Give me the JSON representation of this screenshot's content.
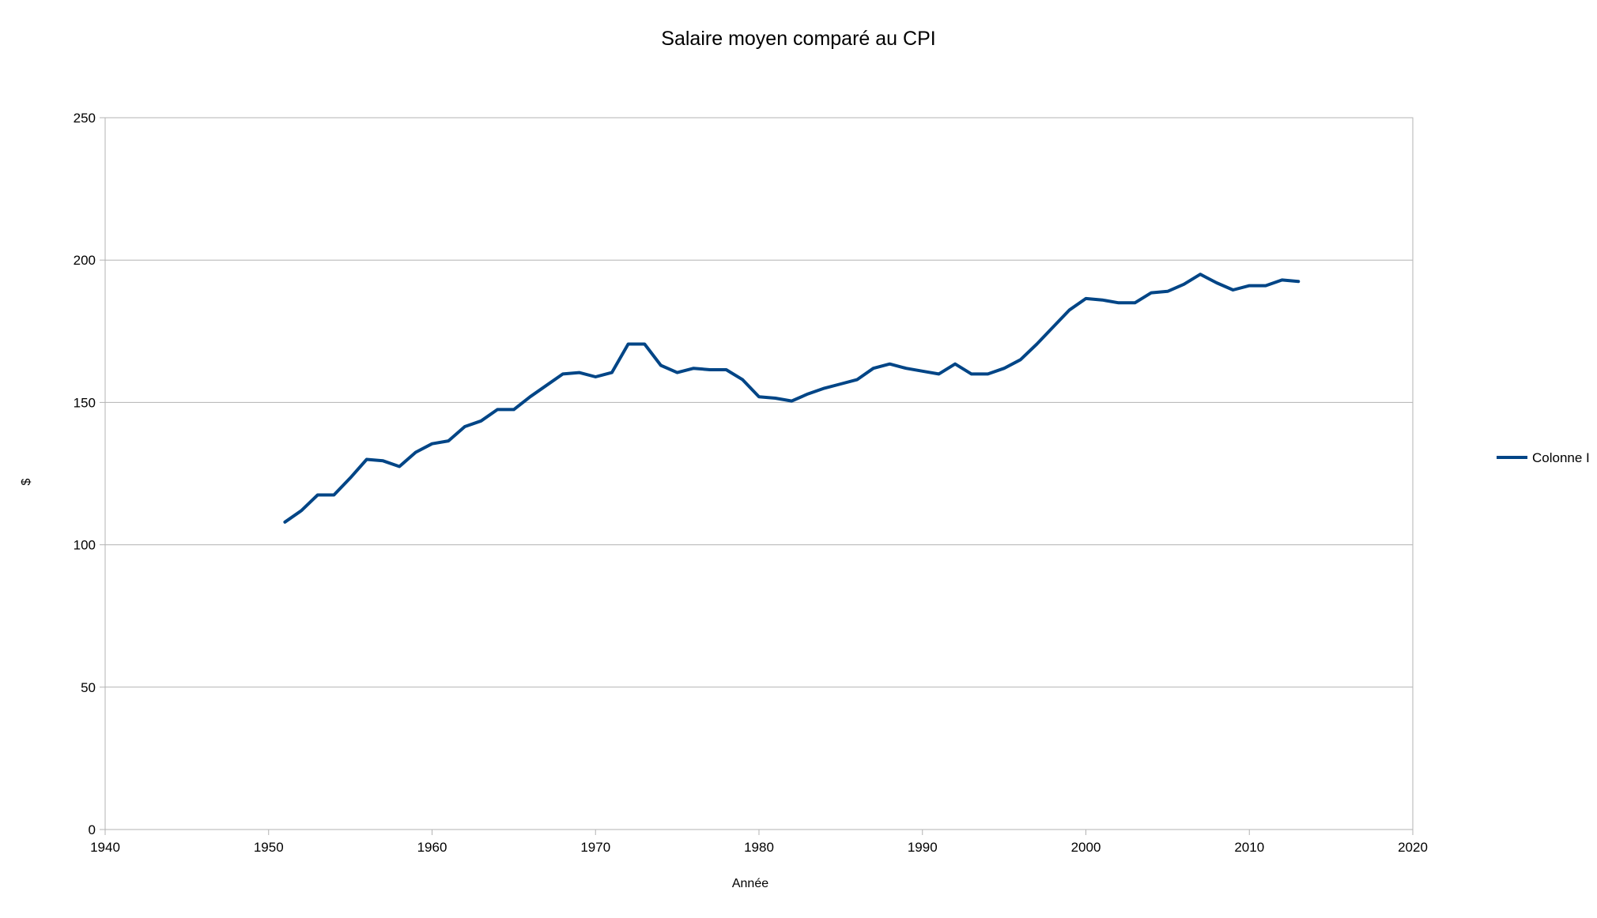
{
  "chart_data": {
    "type": "line",
    "title": "Salaire moyen comparé au CPI",
    "xlabel": "Année",
    "ylabel": "$",
    "xlim": [
      1940,
      2020
    ],
    "ylim": [
      0,
      250
    ],
    "x_ticks": [
      "1940",
      "1950",
      "1960",
      "1970",
      "1980",
      "1990",
      "2000",
      "2010",
      "2020"
    ],
    "y_ticks": [
      "0",
      "50",
      "100",
      "150",
      "200",
      "250"
    ],
    "grid": "horizontal",
    "legend_position": "right",
    "series": [
      {
        "name": "Colonne I",
        "color": "#004586",
        "x": [
          1951,
          1952,
          1953,
          1954,
          1955,
          1956,
          1957,
          1958,
          1959,
          1960,
          1961,
          1962,
          1963,
          1964,
          1965,
          1966,
          1967,
          1968,
          1969,
          1970,
          1971,
          1972,
          1973,
          1974,
          1975,
          1976,
          1977,
          1978,
          1979,
          1980,
          1981,
          1982,
          1983,
          1984,
          1985,
          1986,
          1987,
          1988,
          1989,
          1990,
          1991,
          1992,
          1993,
          1994,
          1995,
          1996,
          1997,
          1998,
          1999,
          2000,
          2001,
          2002,
          2003,
          2004,
          2005,
          2006,
          2007,
          2008,
          2009,
          2010,
          2011,
          2012,
          2013
        ],
        "values": [
          108,
          112,
          117.5,
          117.5,
          123.5,
          130,
          129.5,
          127.5,
          132.5,
          135.5,
          136.5,
          141.5,
          143.5,
          147.5,
          147.5,
          152,
          156,
          160,
          160.5,
          159,
          160.5,
          170.5,
          170.5,
          163,
          160.5,
          162,
          161.5,
          161.5,
          158,
          152,
          151.5,
          150.5,
          153,
          155,
          156.5,
          158,
          162,
          163.5,
          162,
          161,
          160,
          163.5,
          160,
          160,
          162,
          165,
          170.5,
          176.5,
          182.5,
          186.5,
          186,
          185,
          185,
          188.5,
          189,
          191.5,
          195,
          192,
          189.5,
          191,
          191,
          193,
          192.5
        ]
      }
    ]
  }
}
